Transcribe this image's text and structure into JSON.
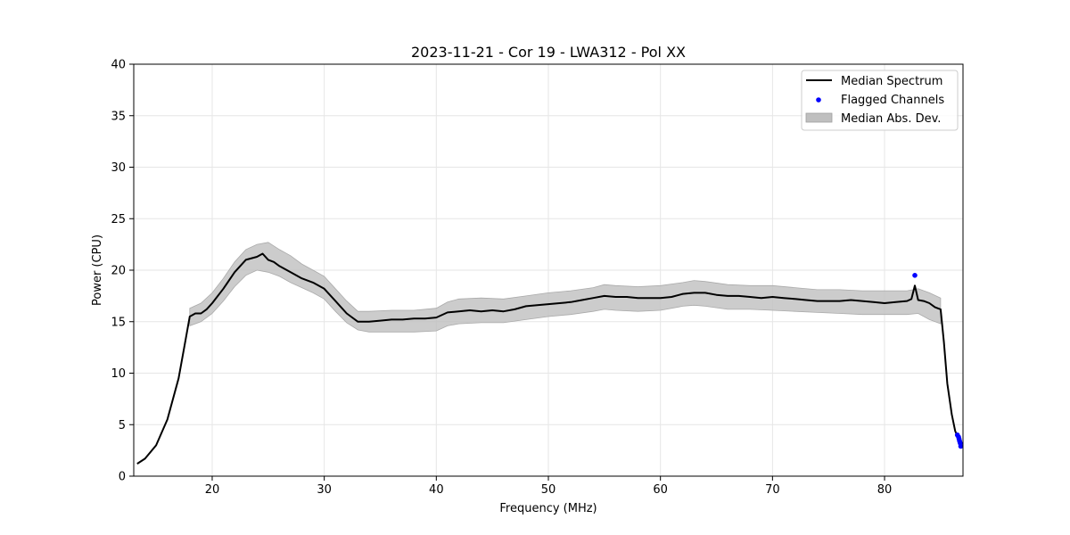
{
  "chart_data": {
    "type": "line",
    "title": "2023-11-21 - Cor 19 - LWA312 - Pol XX",
    "xlabel": "Frequency (MHz)",
    "ylabel": "Power (CPU)",
    "xlim": [
      13.0,
      87.0
    ],
    "ylim": [
      0,
      40
    ],
    "xticks": [
      20,
      30,
      40,
      50,
      60,
      70,
      80
    ],
    "yticks": [
      0,
      5,
      10,
      15,
      20,
      25,
      30,
      35,
      40
    ],
    "grid": true,
    "legend_position": "top-right",
    "legend": [
      "Median Spectrum",
      "Flagged Channels",
      "Median Abs. Dev."
    ],
    "colors": {
      "line": "#000000",
      "flagged": "#0000ff",
      "band": "#bfbfbf",
      "grid": "#e6e6e6"
    },
    "series": [
      {
        "name": "Median Spectrum",
        "kind": "line",
        "x": [
          13.3,
          14.0,
          15.0,
          16.0,
          17.0,
          17.5,
          18.0,
          18.5,
          19.0,
          19.5,
          20.0,
          21.0,
          22.0,
          23.0,
          24.0,
          24.5,
          25.0,
          25.5,
          26.0,
          27.0,
          28.0,
          29.0,
          30.0,
          31.0,
          32.0,
          33.0,
          34.0,
          35.0,
          36.0,
          37.0,
          38.0,
          39.0,
          40.0,
          41.0,
          42.0,
          43.0,
          44.0,
          45.0,
          46.0,
          47.0,
          48.0,
          49.0,
          50.0,
          51.0,
          52.0,
          53.0,
          54.0,
          55.0,
          56.0,
          57.0,
          58.0,
          59.0,
          60.0,
          61.0,
          62.0,
          63.0,
          64.0,
          65.0,
          66.0,
          67.0,
          68.0,
          69.0,
          70.0,
          71.0,
          72.0,
          73.0,
          74.0,
          75.0,
          76.0,
          77.0,
          78.0,
          79.0,
          80.0,
          81.0,
          82.0,
          82.4,
          82.7,
          83.0,
          83.5,
          84.0,
          84.5,
          85.0,
          85.3,
          85.6,
          86.0,
          86.3,
          86.6,
          86.8
        ],
        "y": [
          1.2,
          1.7,
          3.0,
          5.5,
          9.5,
          12.5,
          15.5,
          15.8,
          15.8,
          16.2,
          16.8,
          18.2,
          19.8,
          21.0,
          21.3,
          21.6,
          21.0,
          20.8,
          20.4,
          19.8,
          19.2,
          18.8,
          18.2,
          17.0,
          15.8,
          15.0,
          15.0,
          15.1,
          15.2,
          15.2,
          15.3,
          15.3,
          15.4,
          15.9,
          16.0,
          16.1,
          16.0,
          16.1,
          16.0,
          16.2,
          16.5,
          16.6,
          16.7,
          16.8,
          16.9,
          17.1,
          17.3,
          17.5,
          17.4,
          17.4,
          17.3,
          17.3,
          17.3,
          17.4,
          17.7,
          17.8,
          17.8,
          17.6,
          17.5,
          17.5,
          17.4,
          17.3,
          17.4,
          17.3,
          17.2,
          17.1,
          17.0,
          17.0,
          17.0,
          17.1,
          17.0,
          16.9,
          16.8,
          16.9,
          17.0,
          17.2,
          18.5,
          17.1,
          17.0,
          16.8,
          16.4,
          16.2,
          13.0,
          9.0,
          6.0,
          4.4,
          3.6,
          3.0
        ]
      },
      {
        "name": "Flagged Channels",
        "kind": "scatter",
        "x": [
          82.7,
          86.5,
          86.6,
          86.65,
          86.7,
          86.75,
          86.8
        ],
        "y": [
          19.5,
          4.0,
          3.8,
          3.6,
          3.4,
          3.2,
          2.9
        ]
      },
      {
        "name": "Median Abs. Dev.",
        "kind": "band",
        "x": [
          18.0,
          19.0,
          20.0,
          21.0,
          22.0,
          23.0,
          24.0,
          25.0,
          26.0,
          27.0,
          28.0,
          29.0,
          30.0,
          31.0,
          32.0,
          33.0,
          34.0,
          36.0,
          38.0,
          40.0,
          41.0,
          42.0,
          44.0,
          46.0,
          48.0,
          50.0,
          52.0,
          54.0,
          55.0,
          56.0,
          58.0,
          60.0,
          62.0,
          63.0,
          64.0,
          66.0,
          68.0,
          70.0,
          72.0,
          74.0,
          76.0,
          78.0,
          80.0,
          82.0,
          83.0,
          84.0,
          85.0
        ],
        "lower": [
          14.6,
          15.0,
          15.8,
          17.0,
          18.4,
          19.5,
          20.0,
          19.8,
          19.4,
          18.8,
          18.3,
          17.8,
          17.2,
          16.0,
          14.9,
          14.2,
          14.0,
          14.0,
          14.0,
          14.1,
          14.6,
          14.8,
          14.9,
          14.9,
          15.2,
          15.5,
          15.7,
          16.0,
          16.2,
          16.1,
          16.0,
          16.1,
          16.5,
          16.6,
          16.5,
          16.2,
          16.2,
          16.1,
          16.0,
          15.9,
          15.8,
          15.7,
          15.7,
          15.7,
          15.8,
          15.2,
          14.8
        ],
        "upper": [
          16.3,
          16.8,
          17.8,
          19.2,
          20.8,
          22.0,
          22.5,
          22.7,
          22.0,
          21.4,
          20.6,
          20.0,
          19.4,
          18.2,
          17.0,
          16.0,
          16.0,
          16.1,
          16.1,
          16.3,
          16.9,
          17.2,
          17.3,
          17.2,
          17.5,
          17.8,
          18.0,
          18.3,
          18.6,
          18.5,
          18.4,
          18.5,
          18.8,
          19.0,
          18.9,
          18.6,
          18.5,
          18.5,
          18.3,
          18.1,
          18.1,
          18.0,
          18.0,
          18.0,
          18.2,
          17.8,
          17.3
        ]
      }
    ]
  }
}
